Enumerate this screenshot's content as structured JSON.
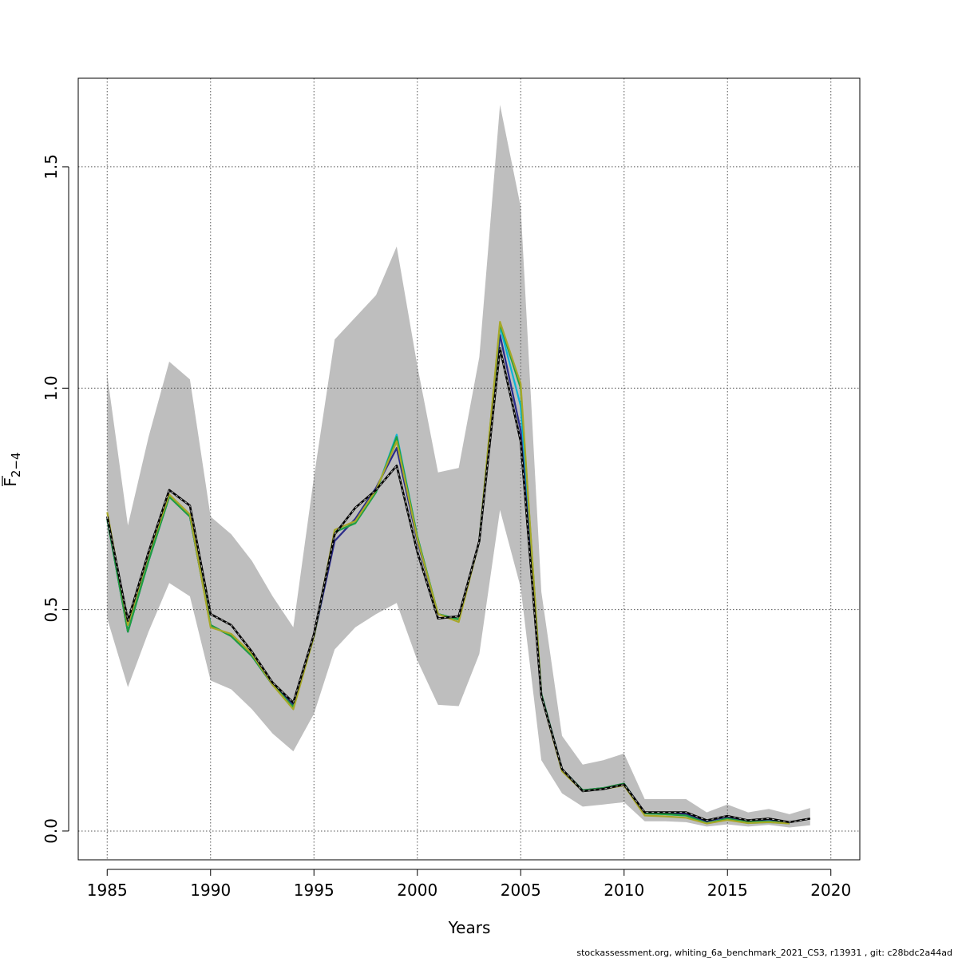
{
  "chart_data": {
    "type": "line",
    "xlabel": "Years",
    "ylabel_main": "F",
    "ylabel_sub": "2−4",
    "xlim": [
      1983.6,
      2021.4
    ],
    "ylim": [
      -0.065,
      1.7
    ],
    "xticks": [
      1985,
      1990,
      1995,
      2000,
      2005,
      2010,
      2015,
      2020
    ],
    "yticks": [
      0.0,
      0.5,
      1.0,
      1.5
    ],
    "xtick_labels": [
      "1985",
      "1990",
      "1995",
      "2000",
      "2005",
      "2010",
      "2015",
      "2020"
    ],
    "ytick_labels": [
      "0.0",
      "0.5",
      "1.0",
      "1.5"
    ],
    "grid": true,
    "confidence_band": {
      "color": "#bebebe",
      "x": [
        1985,
        1986,
        1987,
        1988,
        1989,
        1990,
        1991,
        1992,
        1993,
        1994,
        1995,
        1996,
        1997,
        1998,
        1999,
        2000,
        2001,
        2002,
        2003,
        2004,
        2005,
        2006,
        2007,
        2008,
        2009,
        2010,
        2011,
        2012,
        2013,
        2014,
        2015,
        2016,
        2017,
        2018,
        2019
      ],
      "upper": [
        1.03,
        0.69,
        0.89,
        1.06,
        1.02,
        0.71,
        0.67,
        0.61,
        0.53,
        0.46,
        0.8,
        1.11,
        1.16,
        1.21,
        1.32,
        1.05,
        0.81,
        0.82,
        1.07,
        1.64,
        1.41,
        0.54,
        0.215,
        0.15,
        0.16,
        0.175,
        0.072,
        0.072,
        0.072,
        0.042,
        0.06,
        0.042,
        0.05,
        0.038,
        0.052
      ],
      "lower": [
        0.48,
        0.325,
        0.45,
        0.56,
        0.53,
        0.34,
        0.32,
        0.275,
        0.22,
        0.18,
        0.265,
        0.41,
        0.46,
        0.49,
        0.515,
        0.385,
        0.285,
        0.282,
        0.4,
        0.725,
        0.55,
        0.16,
        0.085,
        0.055,
        0.06,
        0.065,
        0.022,
        0.022,
        0.02,
        0.01,
        0.015,
        0.01,
        0.014,
        0.008,
        0.013
      ]
    },
    "series": [
      {
        "color": "#0bb5d8",
        "width": 2.2,
        "dash": false,
        "x": [
          1985,
          1986,
          1987,
          1988,
          1989,
          1990,
          1991,
          1992,
          1993,
          1994,
          1995,
          1996,
          1997,
          1998,
          1999,
          2000,
          2001,
          2002,
          2003,
          2004,
          2005,
          2006,
          2007,
          2008,
          2009,
          2010,
          2011,
          2012,
          2013,
          2014,
          2015,
          2016,
          2017,
          2018
        ],
        "y": [
          0.705,
          0.45,
          0.61,
          0.755,
          0.71,
          0.465,
          0.44,
          0.395,
          0.33,
          0.28,
          0.44,
          0.675,
          0.695,
          0.765,
          0.895,
          0.665,
          0.49,
          0.478,
          0.655,
          1.14,
          0.96,
          0.305,
          0.14,
          0.09,
          0.095,
          0.105,
          0.04,
          0.038,
          0.035,
          0.018,
          0.026,
          0.018,
          0.02,
          0.017
        ]
      },
      {
        "color": "#2a2a8a",
        "width": 2.2,
        "dash": false,
        "x": [
          1985,
          1986,
          1987,
          1988,
          1989,
          1990,
          1991,
          1992,
          1993,
          1994,
          1995,
          1996,
          1997,
          1998,
          1999,
          2000,
          2001,
          2002,
          2003,
          2004,
          2005,
          2006,
          2007,
          2008,
          2009,
          2010,
          2011,
          2012,
          2013,
          2014,
          2015,
          2016,
          2017,
          2018
        ],
        "y": [
          0.705,
          0.45,
          0.61,
          0.755,
          0.71,
          0.465,
          0.44,
          0.395,
          0.33,
          0.285,
          0.44,
          0.655,
          0.705,
          0.775,
          0.865,
          0.655,
          0.49,
          0.478,
          0.655,
          1.12,
          0.905,
          0.31,
          0.14,
          0.092,
          0.097,
          0.107,
          0.042,
          0.04,
          0.038,
          0.022,
          0.032,
          0.022,
          0.026,
          0.018
        ]
      },
      {
        "color": "#20a040",
        "width": 2.2,
        "dash": false,
        "x": [
          1985,
          1986,
          1987,
          1988,
          1989,
          1990,
          1991,
          1992,
          1993,
          1994,
          1995,
          1996,
          1997,
          1998,
          1999,
          2000,
          2001,
          2002,
          2003,
          2004,
          2005,
          2006,
          2007,
          2008,
          2009,
          2010,
          2011,
          2012,
          2013,
          2014,
          2015,
          2016,
          2017,
          2018
        ],
        "y": [
          0.705,
          0.45,
          0.61,
          0.755,
          0.71,
          0.465,
          0.44,
          0.395,
          0.33,
          0.28,
          0.44,
          0.675,
          0.695,
          0.765,
          0.89,
          0.665,
          0.49,
          0.478,
          0.655,
          1.145,
          1.0,
          0.31,
          0.14,
          0.092,
          0.097,
          0.107,
          0.04,
          0.038,
          0.035,
          0.018,
          0.028,
          0.02,
          0.022,
          0.017
        ]
      },
      {
        "color": "#a8a828",
        "width": 2.2,
        "dash": false,
        "x": [
          1985,
          1986,
          1987,
          1988,
          1989,
          1990,
          1991,
          1992,
          1993,
          1994,
          1995,
          1996,
          1997,
          1998,
          1999,
          2000,
          2001,
          2002,
          2003,
          2004,
          2005,
          2006,
          2007,
          2008,
          2009,
          2010,
          2011,
          2012,
          2013,
          2014,
          2015,
          2016,
          2017,
          2018
        ],
        "y": [
          0.72,
          0.465,
          0.625,
          0.76,
          0.715,
          0.46,
          0.445,
          0.4,
          0.33,
          0.275,
          0.44,
          0.68,
          0.7,
          0.77,
          0.88,
          0.66,
          0.49,
          0.472,
          0.655,
          1.15,
          1.01,
          0.305,
          0.135,
          0.09,
          0.095,
          0.103,
          0.035,
          0.033,
          0.03,
          0.017,
          0.025,
          0.018,
          0.02,
          0.017
        ]
      },
      {
        "color": "#000000",
        "width": 2.6,
        "dash": true,
        "x": [
          1985,
          1986,
          1987,
          1988,
          1989,
          1990,
          1991,
          1992,
          1993,
          1994,
          1995,
          1996,
          1997,
          1998,
          1999,
          2000,
          2001,
          2002,
          2003,
          2004,
          2005,
          2006,
          2007,
          2008,
          2009,
          2010,
          2011,
          2012,
          2013,
          2014,
          2015,
          2016,
          2017,
          2018,
          2019
        ],
        "y": [
          0.71,
          0.475,
          0.63,
          0.77,
          0.735,
          0.49,
          0.465,
          0.405,
          0.335,
          0.29,
          0.445,
          0.67,
          0.73,
          0.77,
          0.825,
          0.63,
          0.48,
          0.485,
          0.655,
          1.09,
          0.88,
          0.305,
          0.14,
          0.09,
          0.095,
          0.105,
          0.042,
          0.042,
          0.042,
          0.024,
          0.034,
          0.024,
          0.028,
          0.02,
          0.028
        ]
      }
    ]
  },
  "footer": {
    "text": "stockassessment.org, whiting_6a_benchmark_2021_CS3, r13931 , git: c28bdc2a44ad"
  }
}
